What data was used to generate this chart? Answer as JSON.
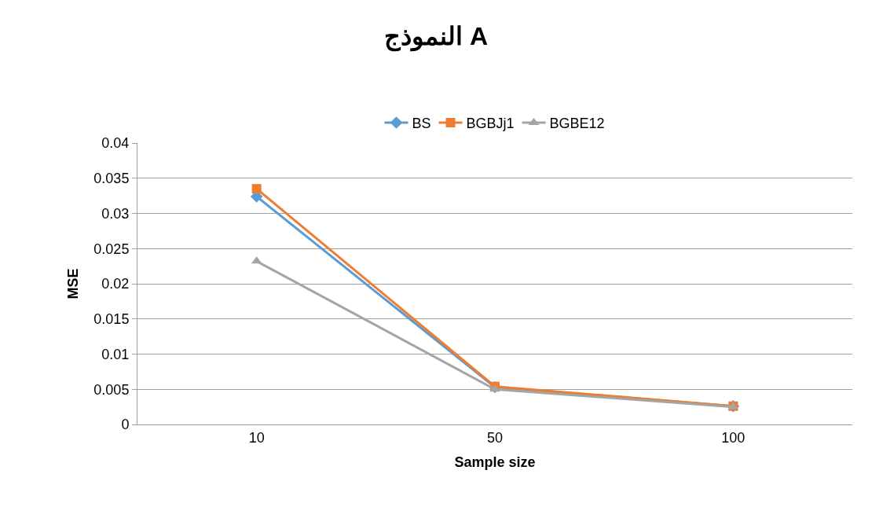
{
  "chart_data": {
    "type": "line",
    "title": "النموذج A",
    "xlabel": "Sample size",
    "ylabel": "MSE",
    "categories": [
      "10",
      "50",
      "100"
    ],
    "series": [
      {
        "name": "BS",
        "color": "#5b9bd5",
        "marker": "diamond",
        "values": [
          0.0324,
          0.0053,
          0.0026
        ]
      },
      {
        "name": "BGBJj1",
        "color": "#ed7d31",
        "marker": "square",
        "values": [
          0.0335,
          0.0054,
          0.0026
        ]
      },
      {
        "name": "BGBE12",
        "color": "#a5a5a5",
        "marker": "triangle",
        "values": [
          0.0232,
          0.005,
          0.0025
        ]
      }
    ],
    "ylim": [
      0,
      0.04
    ],
    "yticks": [
      0,
      0.005,
      0.01,
      0.015,
      0.02,
      0.025,
      0.03,
      0.035,
      0.04
    ],
    "grid": "y",
    "legend": "top",
    "line_style": "solid"
  }
}
